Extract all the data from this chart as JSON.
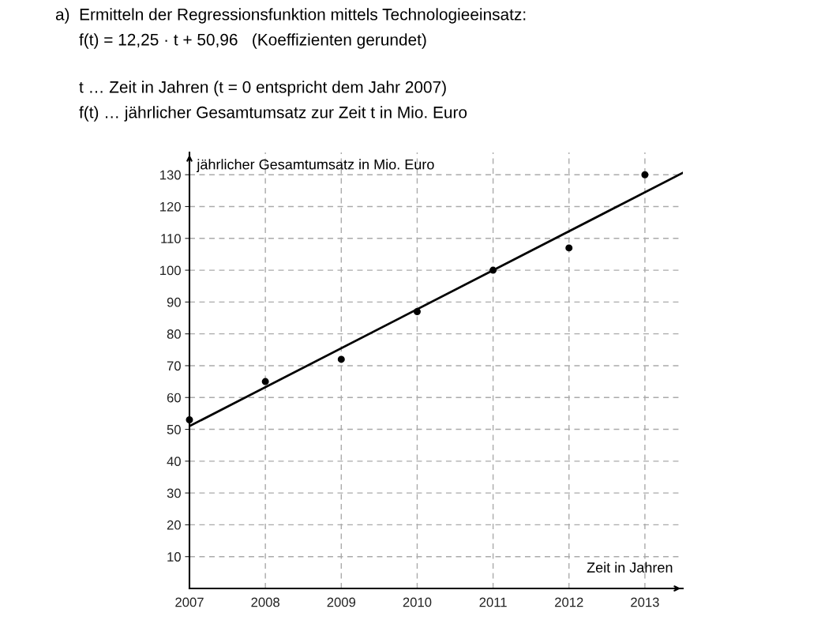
{
  "chart_data": {
    "type": "scatter",
    "title": "a)  Ermitteln der Regressionsfunktion mittels Technologieeinsatz:",
    "annotations": [
      "f(t) = 12,25 · t + 50,96   (Koeffizienten gerundet)",
      "t … Zeit in Jahren (t = 0 entspricht dem Jahr 2007)",
      "f(t) … jährlicher Gesamtumsatz zur Zeit t in Mio. Euro"
    ],
    "xlabel": "Zeit in Jahren",
    "ylabel": "jährlicher Gesamtumsatz in Mio. Euro",
    "series": [
      {
        "color": "#000000",
        "marker": "circle",
        "x": [
          2007,
          2008,
          2009,
          2010,
          2011,
          2012,
          2013
        ],
        "values": [
          53,
          65,
          72,
          87,
          100,
          107,
          130
        ]
      },
      {
        "type": "line",
        "color": "#000000",
        "marker": "none",
        "line_style": "solid",
        "x": [
          2007,
          2013.5
        ],
        "values": [
          51,
          130.6
        ]
      }
    ],
    "xlim": [
      2007,
      2013.5
    ],
    "ylim": [
      0,
      137
    ],
    "xticks": [
      2007,
      2008,
      2009,
      2010,
      2011,
      2012,
      2013
    ],
    "yticks": [
      10,
      20,
      30,
      40,
      50,
      60,
      70,
      80,
      90,
      100,
      110,
      120,
      130
    ],
    "grid": true
  }
}
